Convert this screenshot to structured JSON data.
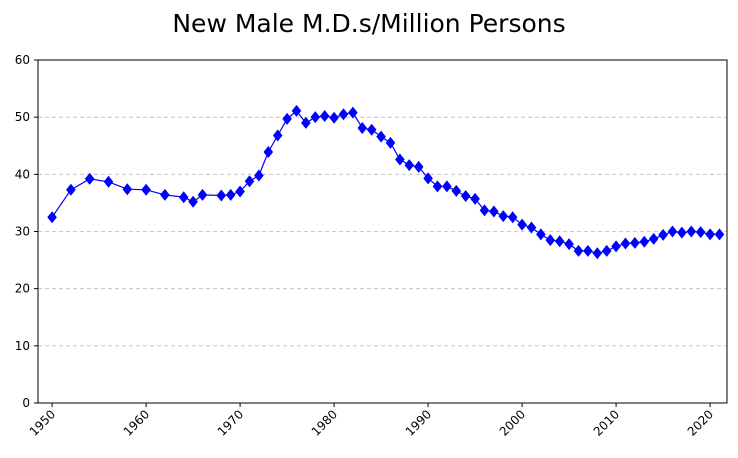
{
  "chart_data": {
    "type": "line",
    "title": "New Male M.D.s/Million Persons",
    "xlabel": "",
    "ylabel": "",
    "xlim": [
      1948.5,
      2021.8
    ],
    "ylim": [
      0,
      60
    ],
    "x_ticks": [
      1950,
      1960,
      1970,
      1980,
      1990,
      2000,
      2010,
      2020
    ],
    "y_ticks": [
      0,
      10,
      20,
      30,
      40,
      50,
      60
    ],
    "grid": "horizontal dashed",
    "legend": "none",
    "marker": "diamond",
    "color": "#0000ff",
    "series": [
      {
        "x": [
          1950,
          1952,
          1954,
          1956,
          1958,
          1960,
          1962,
          1964,
          1965,
          1966,
          1968,
          1969,
          1970,
          1971,
          1972,
          1973,
          1974,
          1975,
          1976,
          1977,
          1978,
          1979,
          1980,
          1981,
          1982,
          1983,
          1984,
          1985,
          1986,
          1987,
          1988,
          1989,
          1990,
          1991,
          1992,
          1993,
          1994,
          1995,
          1996,
          1997,
          1998,
          1999,
          2000,
          2001,
          2002,
          2003,
          2004,
          2005,
          2006,
          2007,
          2008,
          2009,
          2010,
          2011,
          2012,
          2013,
          2014,
          2015,
          2016,
          2017,
          2018,
          2019,
          2020,
          2021
        ],
        "values": [
          32.5,
          37.3,
          39.2,
          38.7,
          37.4,
          37.3,
          36.4,
          36.0,
          35.2,
          36.4,
          36.3,
          36.4,
          37.0,
          38.8,
          39.8,
          43.9,
          46.8,
          49.7,
          51.1,
          49.0,
          50.0,
          50.2,
          49.9,
          50.5,
          50.8,
          48.1,
          47.8,
          46.6,
          45.5,
          42.6,
          41.6,
          41.3,
          39.3,
          37.9,
          37.9,
          37.1,
          36.2,
          35.7,
          33.7,
          33.5,
          32.7,
          32.5,
          31.2,
          30.7,
          29.5,
          28.5,
          28.3,
          27.8,
          26.6,
          26.6,
          26.2,
          26.6,
          27.4,
          27.9,
          28.0,
          28.2,
          28.7,
          29.4,
          30.0,
          29.8,
          30.0,
          29.9,
          29.5,
          29.5
        ]
      }
    ]
  }
}
